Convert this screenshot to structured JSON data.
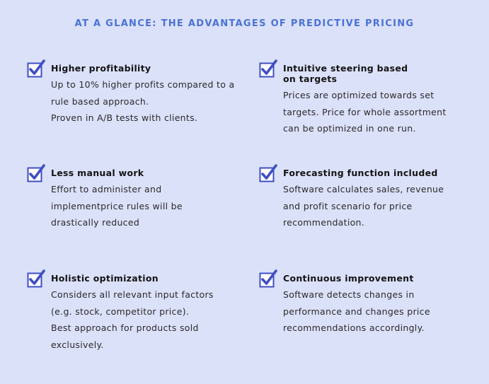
{
  "title": "AT A GLANCE: THE ADVANTAGES OF PREDICTIVE PRICING",
  "colors": {
    "background": "#dbe1f9",
    "accent": "#4a72d6",
    "checkbox": "#3f4fc4"
  },
  "icon": "checkbox-checked-icon",
  "items": [
    {
      "title": "Higher profitability",
      "text": "Up to 10% higher profits compared to a rule based approach.\nProven in A/B tests with clients."
    },
    {
      "title": "Intuitive steering based on targets",
      "text": "Prices are optimized towards set targets. Price for whole assortment can be optimized in one run."
    },
    {
      "title": "Less manual work",
      "text": "Effort to administer and implementprice rules will be drastically reduced"
    },
    {
      "title": "Forecasting function included",
      "text": "Software calculates sales, revenue and profit scenario for price recommendation."
    },
    {
      "title": "Holistic optimization",
      "text": "Considers all relevant input factors (e.g. stock, competitor price).\nBest approach for products sold exclusively."
    },
    {
      "title": "Continuous improvement",
      "text": "Software detects changes in performance and changes price recommendations accordingly."
    }
  ]
}
